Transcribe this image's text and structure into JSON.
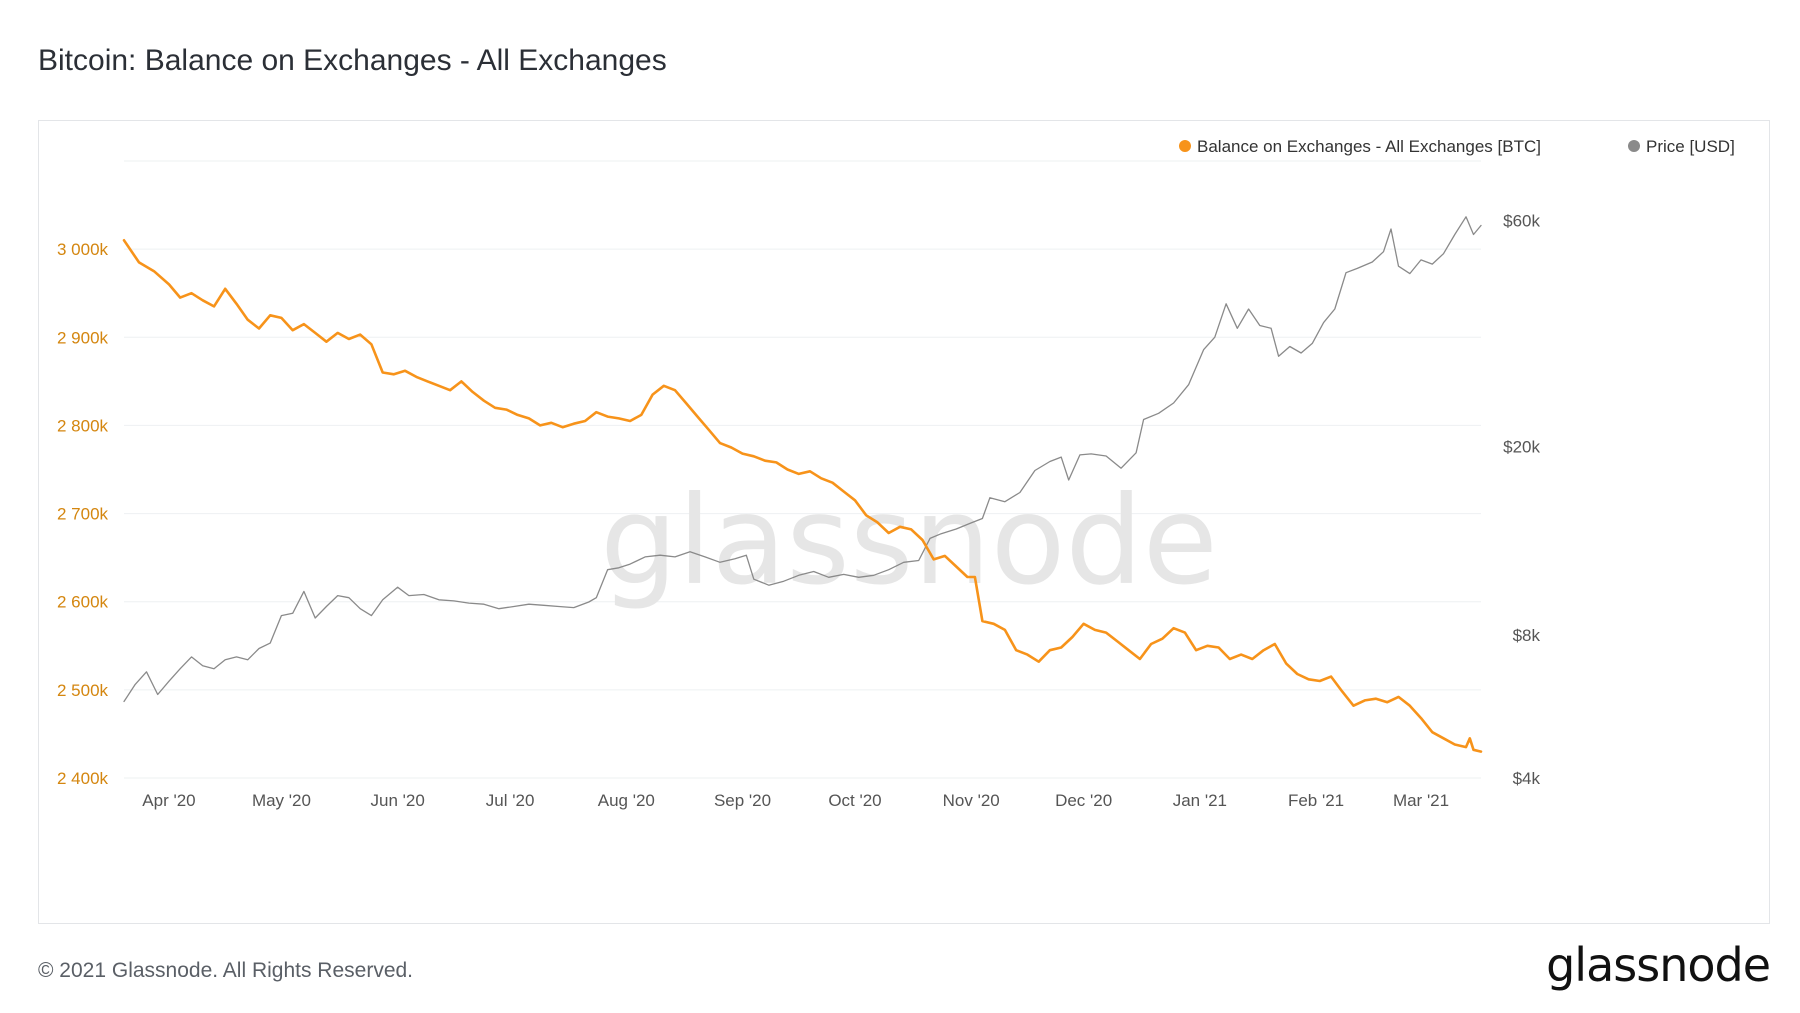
{
  "page": {
    "title": "Bitcoin: Balance on Exchanges - All Exchanges",
    "copyright": "© 2021 Glassnode. All Rights Reserved.",
    "logo_text": "glassnode",
    "watermark_text": "glassnode"
  },
  "colors": {
    "balance_series": "#f7931a",
    "price_series": "#8a8a8a",
    "left_axis_text": "#d4860f",
    "right_axis_text": "#555555",
    "gridline": "#eef0f2",
    "watermark": "#e6e6e6"
  },
  "chart_data": {
    "type": "line",
    "title": "Bitcoin: Balance on Exchanges - All Exchanges",
    "legend_position": "top-right",
    "grid": true,
    "x_range": [
      "2020-03-20",
      "2021-03-17"
    ],
    "x_ticks": [
      "Apr '20",
      "May '20",
      "Jun '20",
      "Jul '20",
      "Aug '20",
      "Sep '20",
      "Oct '20",
      "Nov '20",
      "Dec '20",
      "Jan '21",
      "Feb '21",
      "Mar '21"
    ],
    "y_left": {
      "ticks": [
        "2 400k",
        "2 500k",
        "2 600k",
        "2 700k",
        "2 800k",
        "2 900k",
        "3 000k"
      ],
      "ylim": [
        2400000,
        3100000
      ]
    },
    "y_right": {
      "scale": "log",
      "ticks": [
        "$4k",
        "$8k",
        "$20k",
        "$60k"
      ],
      "ylim": [
        4000,
        80000
      ]
    },
    "series": [
      {
        "name": "Balance on Exchanges - All Exchanges [BTC]",
        "axis": "left",
        "points": [
          [
            "2020-03-20",
            3010000
          ],
          [
            "2020-03-24",
            2985000
          ],
          [
            "2020-03-28",
            2975000
          ],
          [
            "2020-04-01",
            2960000
          ],
          [
            "2020-04-04",
            2945000
          ],
          [
            "2020-04-07",
            2950000
          ],
          [
            "2020-04-10",
            2942000
          ],
          [
            "2020-04-13",
            2935000
          ],
          [
            "2020-04-16",
            2955000
          ],
          [
            "2020-04-19",
            2938000
          ],
          [
            "2020-04-22",
            2920000
          ],
          [
            "2020-04-25",
            2910000
          ],
          [
            "2020-04-28",
            2925000
          ],
          [
            "2020-05-01",
            2922000
          ],
          [
            "2020-05-04",
            2908000
          ],
          [
            "2020-05-07",
            2915000
          ],
          [
            "2020-05-10",
            2905000
          ],
          [
            "2020-05-13",
            2895000
          ],
          [
            "2020-05-16",
            2905000
          ],
          [
            "2020-05-19",
            2898000
          ],
          [
            "2020-05-22",
            2903000
          ],
          [
            "2020-05-25",
            2892000
          ],
          [
            "2020-05-28",
            2860000
          ],
          [
            "2020-05-31",
            2858000
          ],
          [
            "2020-06-03",
            2862000
          ],
          [
            "2020-06-06",
            2855000
          ],
          [
            "2020-06-09",
            2850000
          ],
          [
            "2020-06-12",
            2845000
          ],
          [
            "2020-06-15",
            2840000
          ],
          [
            "2020-06-18",
            2850000
          ],
          [
            "2020-06-21",
            2838000
          ],
          [
            "2020-06-24",
            2828000
          ],
          [
            "2020-06-27",
            2820000
          ],
          [
            "2020-06-30",
            2818000
          ],
          [
            "2020-07-03",
            2812000
          ],
          [
            "2020-07-06",
            2808000
          ],
          [
            "2020-07-09",
            2800000
          ],
          [
            "2020-07-12",
            2803000
          ],
          [
            "2020-07-15",
            2798000
          ],
          [
            "2020-07-18",
            2802000
          ],
          [
            "2020-07-21",
            2805000
          ],
          [
            "2020-07-24",
            2815000
          ],
          [
            "2020-07-27",
            2810000
          ],
          [
            "2020-07-30",
            2808000
          ],
          [
            "2020-08-02",
            2805000
          ],
          [
            "2020-08-05",
            2812000
          ],
          [
            "2020-08-08",
            2835000
          ],
          [
            "2020-08-11",
            2845000
          ],
          [
            "2020-08-14",
            2840000
          ],
          [
            "2020-08-17",
            2825000
          ],
          [
            "2020-08-20",
            2810000
          ],
          [
            "2020-08-23",
            2795000
          ],
          [
            "2020-08-26",
            2780000
          ],
          [
            "2020-08-29",
            2775000
          ],
          [
            "2020-09-01",
            2768000
          ],
          [
            "2020-09-04",
            2765000
          ],
          [
            "2020-09-07",
            2760000
          ],
          [
            "2020-09-10",
            2758000
          ],
          [
            "2020-09-13",
            2750000
          ],
          [
            "2020-09-16",
            2745000
          ],
          [
            "2020-09-19",
            2748000
          ],
          [
            "2020-09-22",
            2740000
          ],
          [
            "2020-09-25",
            2735000
          ],
          [
            "2020-09-28",
            2725000
          ],
          [
            "2020-10-01",
            2715000
          ],
          [
            "2020-10-04",
            2698000
          ],
          [
            "2020-10-07",
            2690000
          ],
          [
            "2020-10-10",
            2678000
          ],
          [
            "2020-10-13",
            2685000
          ],
          [
            "2020-10-16",
            2682000
          ],
          [
            "2020-10-19",
            2670000
          ],
          [
            "2020-10-22",
            2648000
          ],
          [
            "2020-10-25",
            2652000
          ],
          [
            "2020-10-28",
            2640000
          ],
          [
            "2020-10-31",
            2628000
          ],
          [
            "2020-11-02",
            2628000
          ],
          [
            "2020-11-04",
            2578000
          ],
          [
            "2020-11-07",
            2575000
          ],
          [
            "2020-11-10",
            2568000
          ],
          [
            "2020-11-13",
            2545000
          ],
          [
            "2020-11-16",
            2540000
          ],
          [
            "2020-11-19",
            2532000
          ],
          [
            "2020-11-22",
            2545000
          ],
          [
            "2020-11-25",
            2548000
          ],
          [
            "2020-11-28",
            2560000
          ],
          [
            "2020-12-01",
            2575000
          ],
          [
            "2020-12-04",
            2568000
          ],
          [
            "2020-12-07",
            2565000
          ],
          [
            "2020-12-10",
            2555000
          ],
          [
            "2020-12-13",
            2545000
          ],
          [
            "2020-12-16",
            2535000
          ],
          [
            "2020-12-19",
            2552000
          ],
          [
            "2020-12-22",
            2558000
          ],
          [
            "2020-12-25",
            2570000
          ],
          [
            "2020-12-28",
            2565000
          ],
          [
            "2020-12-31",
            2545000
          ],
          [
            "2021-01-03",
            2550000
          ],
          [
            "2021-01-06",
            2548000
          ],
          [
            "2021-01-09",
            2535000
          ],
          [
            "2021-01-12",
            2540000
          ],
          [
            "2021-01-15",
            2535000
          ],
          [
            "2021-01-18",
            2545000
          ],
          [
            "2021-01-21",
            2552000
          ],
          [
            "2021-01-24",
            2530000
          ],
          [
            "2021-01-27",
            2518000
          ],
          [
            "2021-01-30",
            2512000
          ],
          [
            "2021-02-02",
            2510000
          ],
          [
            "2021-02-05",
            2515000
          ],
          [
            "2021-02-08",
            2498000
          ],
          [
            "2021-02-11",
            2482000
          ],
          [
            "2021-02-14",
            2488000
          ],
          [
            "2021-02-17",
            2490000
          ],
          [
            "2021-02-20",
            2486000
          ],
          [
            "2021-02-23",
            2492000
          ],
          [
            "2021-02-26",
            2482000
          ],
          [
            "2021-03-01",
            2468000
          ],
          [
            "2021-03-04",
            2452000
          ],
          [
            "2021-03-07",
            2445000
          ],
          [
            "2021-03-10",
            2438000
          ],
          [
            "2021-03-13",
            2435000
          ],
          [
            "2021-03-14",
            2445000
          ],
          [
            "2021-03-15",
            2432000
          ],
          [
            "2021-03-17",
            2430000
          ]
        ]
      },
      {
        "name": "Price [USD]",
        "axis": "right",
        "points": [
          [
            "2020-03-20",
            5800
          ],
          [
            "2020-03-23",
            6300
          ],
          [
            "2020-03-26",
            6700
          ],
          [
            "2020-03-29",
            6000
          ],
          [
            "2020-04-01",
            6400
          ],
          [
            "2020-04-04",
            6800
          ],
          [
            "2020-04-07",
            7200
          ],
          [
            "2020-04-10",
            6900
          ],
          [
            "2020-04-13",
            6800
          ],
          [
            "2020-04-16",
            7100
          ],
          [
            "2020-04-19",
            7200
          ],
          [
            "2020-04-22",
            7100
          ],
          [
            "2020-04-25",
            7500
          ],
          [
            "2020-04-28",
            7700
          ],
          [
            "2020-05-01",
            8800
          ],
          [
            "2020-05-04",
            8900
          ],
          [
            "2020-05-07",
            9900
          ],
          [
            "2020-05-10",
            8700
          ],
          [
            "2020-05-13",
            9200
          ],
          [
            "2020-05-16",
            9700
          ],
          [
            "2020-05-19",
            9600
          ],
          [
            "2020-05-22",
            9100
          ],
          [
            "2020-05-25",
            8800
          ],
          [
            "2020-05-28",
            9500
          ],
          [
            "2020-06-01",
            10100
          ],
          [
            "2020-06-04",
            9700
          ],
          [
            "2020-06-08",
            9750
          ],
          [
            "2020-06-12",
            9500
          ],
          [
            "2020-06-16",
            9450
          ],
          [
            "2020-06-20",
            9350
          ],
          [
            "2020-06-24",
            9300
          ],
          [
            "2020-06-28",
            9100
          ],
          [
            "2020-07-02",
            9200
          ],
          [
            "2020-07-06",
            9300
          ],
          [
            "2020-07-10",
            9250
          ],
          [
            "2020-07-14",
            9200
          ],
          [
            "2020-07-18",
            9150
          ],
          [
            "2020-07-22",
            9400
          ],
          [
            "2020-07-24",
            9600
          ],
          [
            "2020-07-27",
            11000
          ],
          [
            "2020-07-30",
            11100
          ],
          [
            "2020-08-02",
            11300
          ],
          [
            "2020-08-06",
            11700
          ],
          [
            "2020-08-10",
            11800
          ],
          [
            "2020-08-14",
            11700
          ],
          [
            "2020-08-18",
            12000
          ],
          [
            "2020-08-22",
            11700
          ],
          [
            "2020-08-26",
            11400
          ],
          [
            "2020-08-30",
            11600
          ],
          [
            "2020-09-02",
            11800
          ],
          [
            "2020-09-04",
            10500
          ],
          [
            "2020-09-08",
            10200
          ],
          [
            "2020-09-12",
            10400
          ],
          [
            "2020-09-16",
            10700
          ],
          [
            "2020-09-20",
            10900
          ],
          [
            "2020-09-24",
            10600
          ],
          [
            "2020-09-28",
            10750
          ],
          [
            "2020-10-02",
            10600
          ],
          [
            "2020-10-06",
            10700
          ],
          [
            "2020-10-10",
            11000
          ],
          [
            "2020-10-14",
            11400
          ],
          [
            "2020-10-18",
            11500
          ],
          [
            "2020-10-21",
            12800
          ],
          [
            "2020-10-24",
            13100
          ],
          [
            "2020-10-28",
            13400
          ],
          [
            "2020-11-01",
            13800
          ],
          [
            "2020-11-04",
            14100
          ],
          [
            "2020-11-06",
            15600
          ],
          [
            "2020-11-10",
            15300
          ],
          [
            "2020-11-14",
            16000
          ],
          [
            "2020-11-18",
            17800
          ],
          [
            "2020-11-22",
            18600
          ],
          [
            "2020-11-25",
            19000
          ],
          [
            "2020-11-27",
            17000
          ],
          [
            "2020-11-30",
            19200
          ],
          [
            "2020-12-03",
            19300
          ],
          [
            "2020-12-07",
            19100
          ],
          [
            "2020-12-11",
            18000
          ],
          [
            "2020-12-15",
            19400
          ],
          [
            "2020-12-17",
            22800
          ],
          [
            "2020-12-21",
            23500
          ],
          [
            "2020-12-25",
            24700
          ],
          [
            "2020-12-29",
            27000
          ],
          [
            "2021-01-02",
            32000
          ],
          [
            "2021-01-05",
            34000
          ],
          [
            "2021-01-08",
            40000
          ],
          [
            "2021-01-11",
            35500
          ],
          [
            "2021-01-14",
            39000
          ],
          [
            "2021-01-17",
            36000
          ],
          [
            "2021-01-20",
            35500
          ],
          [
            "2021-01-22",
            31000
          ],
          [
            "2021-01-25",
            32500
          ],
          [
            "2021-01-28",
            31500
          ],
          [
            "2021-01-31",
            33000
          ],
          [
            "2021-02-03",
            36500
          ],
          [
            "2021-02-06",
            39000
          ],
          [
            "2021-02-09",
            46500
          ],
          [
            "2021-02-12",
            47500
          ],
          [
            "2021-02-16",
            49000
          ],
          [
            "2021-02-19",
            51500
          ],
          [
            "2021-02-21",
            57500
          ],
          [
            "2021-02-23",
            48000
          ],
          [
            "2021-02-26",
            46300
          ],
          [
            "2021-03-01",
            49500
          ],
          [
            "2021-03-04",
            48500
          ],
          [
            "2021-03-07",
            51000
          ],
          [
            "2021-03-10",
            56000
          ],
          [
            "2021-03-13",
            61000
          ],
          [
            "2021-03-15",
            56000
          ],
          [
            "2021-03-17",
            58500
          ]
        ]
      }
    ]
  }
}
